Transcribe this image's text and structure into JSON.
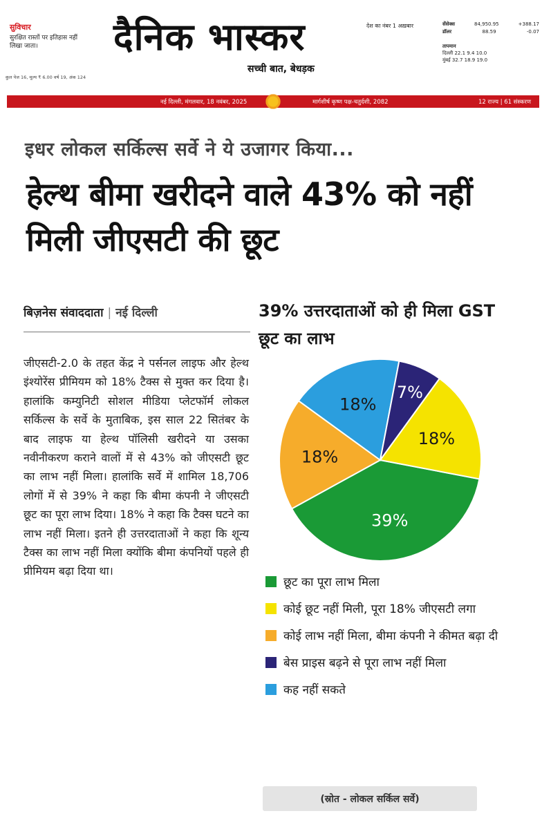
{
  "masthead": {
    "logo": "दैनिक भास्कर",
    "tagline": "सच्ची बात, बेधड़क",
    "thought_title": "सुविचार",
    "thought_text": "सुरक्षित रास्तों पर इतिहास नहीं लिखा जाता।",
    "edition_info": "कुल पेज 16, मूल्य ₹ 6.00 वर्ष 19, अंक 124",
    "top_note": "देश का नंबर 1 अख़बार",
    "sensex_label": "सेंसेक्स",
    "sensex_value": "84,950.95",
    "sensex_change": "+388.17",
    "dollar_label": "डॉलर",
    "dollar_value": "88.59",
    "dollar_change": "-0.07",
    "weather_label": "तापमान",
    "weather_delhi": "दिल्ली 22.1 9.4 10.0",
    "weather_mumbai": "मुंबई 32.7 18.9 19.0",
    "date_line": "नई दिल्ली, मंगलवार, 18 नवंबर, 2025",
    "panchang": "मार्गशीर्ष कृष्ण पक्ष-चतुर्दशी, 2082",
    "editions": "12 राज्य | 61 संस्करण"
  },
  "article": {
    "strap": "इधर लोकल सर्किल्स सर्वे ने ये उजागर किया...",
    "headline": "हेल्थ बीमा खरीदने वाले 43% को नहीं मिली जीएसटी की छूट",
    "byline_author": "बिज़नेस संवाददाता",
    "byline_place": "नई दिल्ली",
    "body": "जीएसटी-2.0 के तहत केंद्र ने पर्सनल लाइफ और हेल्थ इंश्योरेंस प्रीमियम को 18% टैक्स से मुक्त कर दिया है। हालांकि कम्युनिटी सोशल मीडिया प्लेटफॉर्म लोकल सर्किल्स के सर्वे के मुताबिक, इस साल 22 सितंबर के बाद लाइफ या हेल्थ पॉलिसी खरीदने या उसका नवीनीकरण कराने वालों में से 43% को जीएसटी छूट का लाभ नहीं मिला। हालांकि सर्वे में शामिल 18,706 लोगों में से 39% ने कहा कि बीमा कंपनी ने जीएसटी छूट का पूरा लाभ दिया। 18% ने कहा कि टैक्स घटने का लाभ नहीं मिला। इतने ही उत्तरदाताओं ने कहा कि शून्य टैक्स का लाभ नहीं मिला क्योंकि बीमा कंपनियों पहले ही प्रीमियम बढ़ा दिया था।"
  },
  "chart_data": {
    "type": "pie",
    "title": "39% उत्तरदाताओं को ही मिला GST छूट का लाभ",
    "slices": [
      {
        "label": "छूट का पूरा लाभ मिला",
        "value": 39,
        "display": "39%",
        "color": "#1a9a36",
        "text_color": "#ffffff"
      },
      {
        "label": "कोई लाभ नहीं मिला, बीमा कंपनी ने कीमत बढ़ा दी",
        "value": 18,
        "display": "18%",
        "color": "#f6ac2b",
        "text_color": "#1a1a1a"
      },
      {
        "label": "कह नहीं सकते",
        "value": 18,
        "display": "18%",
        "color": "#2b9ede",
        "text_color": "#1a1a1a"
      },
      {
        "label": "बेस प्राइस बढ़ने से पूरा लाभ नहीं मिला",
        "value": 7,
        "display": "7%",
        "color": "#2b2477",
        "text_color": "#ffffff"
      },
      {
        "label": "कोई छूट नहीं मिली, पूरा 18% जीएसटी लगा",
        "value": 18,
        "display": "18%",
        "color": "#f5e300",
        "text_color": "#1a1a1a"
      }
    ],
    "legend": [
      {
        "label": "छूट का पूरा लाभ मिला",
        "color": "#1a9a36"
      },
      {
        "label": "कोई छूट नहीं मिली, पूरा 18% जीएसटी लगा",
        "color": "#f5e300"
      },
      {
        "label": "कोई लाभ नहीं मिला, बीमा कंपनी ने कीमत बढ़ा दी",
        "color": "#f6ac2b"
      },
      {
        "label": "बेस प्राइस बढ़ने से पूरा लाभ नहीं मिला",
        "color": "#2b2477"
      },
      {
        "label": "कह नहीं सकते",
        "color": "#2b9ede"
      }
    ],
    "legend_placement": "bottom",
    "source": "(स्रोत - लोकल सर्किल सर्वे)"
  }
}
